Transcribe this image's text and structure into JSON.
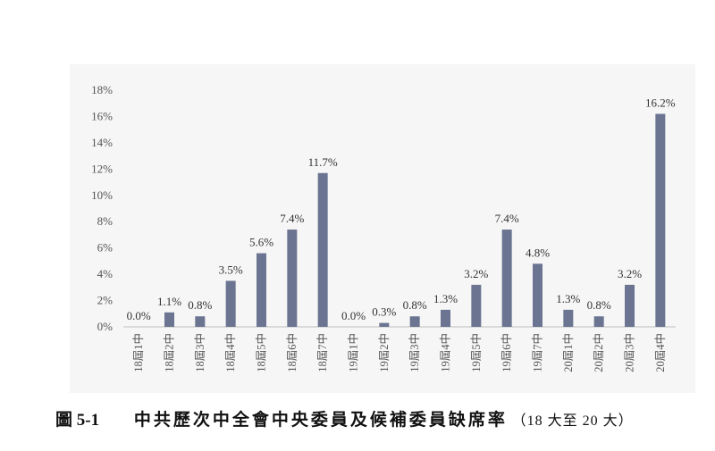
{
  "chart_data": {
    "type": "bar",
    "categories": [
      "18屆1中",
      "18屆2中",
      "18屆3中",
      "18屆4中",
      "18屆5中",
      "18屆6中",
      "18屆7中",
      "19屆1中",
      "19屆2中",
      "19屆3中",
      "19屆4中",
      "19屆5中",
      "19屆6中",
      "19屆7中",
      "20屆1中",
      "20屆2中",
      "20屆3中",
      "20屆4中"
    ],
    "values": [
      0.0,
      1.1,
      0.8,
      3.5,
      5.6,
      7.4,
      11.7,
      0.0,
      0.3,
      0.8,
      1.3,
      3.2,
      7.4,
      4.8,
      1.3,
      0.8,
      3.2,
      16.2
    ],
    "data_labels": [
      "0.0%",
      "1.1%",
      "0.8%",
      "3.5%",
      "5.6%",
      "7.4%",
      "11.7%",
      "0.0%",
      "0.3%",
      "0.8%",
      "1.3%",
      "3.2%",
      "7.4%",
      "4.8%",
      "1.3%",
      "0.8%",
      "3.2%",
      "16.2%"
    ],
    "y_ticks": [
      "0%",
      "2%",
      "4%",
      "6%",
      "8%",
      "10%",
      "12%",
      "14%",
      "16%",
      "18%"
    ],
    "ylim": [
      0,
      18
    ],
    "grid": false,
    "legend": "none",
    "bar_color": "#6b7591"
  },
  "caption": {
    "number": "圖 5-1",
    "title": "中共歷次中全會中央委員及候補委員缺席率",
    "subtitle": "（18 大至 20 大）"
  }
}
